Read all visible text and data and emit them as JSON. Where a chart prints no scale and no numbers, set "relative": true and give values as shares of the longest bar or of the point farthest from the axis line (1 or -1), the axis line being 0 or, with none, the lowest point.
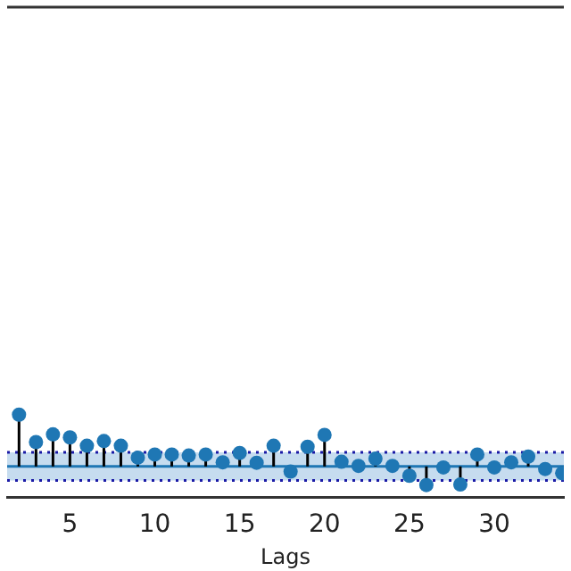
{
  "chart_data": {
    "type": "lollipop",
    "relative": true,
    "xlabel": "Lags",
    "x": [
      2,
      3,
      4,
      5,
      6,
      7,
      8,
      9,
      10,
      11,
      12,
      13,
      14,
      15,
      16,
      17,
      18,
      19,
      20,
      21,
      22,
      23,
      24,
      25,
      26,
      27,
      28,
      29,
      30,
      31,
      32,
      33,
      34
    ],
    "series": [
      {
        "color": "#1f77b4",
        "values": [
          1,
          0.47,
          0.62,
          0.56,
          0.4,
          0.49,
          0.4,
          0.17,
          0.23,
          0.23,
          0.21,
          0.23,
          0.08,
          0.26,
          0.07,
          0.4,
          -0.1,
          0.38,
          0.61,
          0.09,
          0.01,
          0.15,
          0.01,
          -0.18,
          -0.36,
          -0.02,
          -0.35,
          0.23,
          -0.02,
          0.08,
          0.19,
          -0.05,
          -0.13
        ]
      }
    ],
    "xlim": [
      1.3,
      34.1
    ],
    "xticks": [
      5,
      10,
      15,
      20,
      25,
      30
    ],
    "marker": "circle",
    "grid": false,
    "legend": false,
    "tick_labels": "x",
    "bands": [
      {
        "axis": "y",
        "from": -0.27,
        "to": 0.27,
        "color": "#c6dcef"
      }
    ],
    "ref_lines": [
      {
        "axis": "y",
        "value": 0.27,
        "color": "#1a1aa6",
        "line_style": "dotted"
      },
      {
        "axis": "y",
        "value": -0.27,
        "color": "#1a1aa6",
        "line_style": "dotted"
      },
      {
        "axis": "y",
        "value": 0,
        "color": "#1f77b4",
        "line_style": "solid"
      }
    ]
  }
}
